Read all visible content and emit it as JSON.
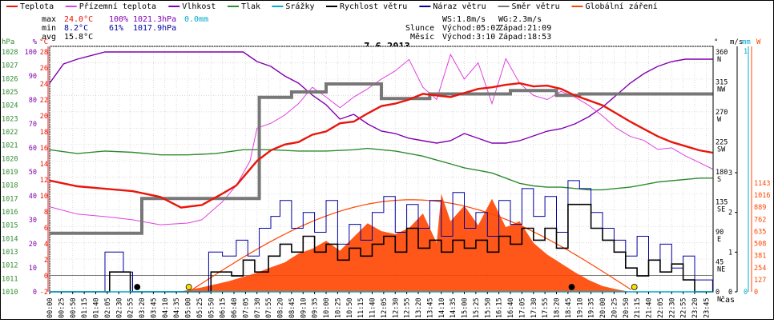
{
  "legend": [
    {
      "label": "Teplota",
      "color": "#e8160c"
    },
    {
      "label": "Přízemní teplota",
      "color": "#e040e0"
    },
    {
      "label": "Vlhkost",
      "color": "#8000b0"
    },
    {
      "label": "Tlak",
      "color": "#2e8b2e"
    },
    {
      "label": "Srážky",
      "color": "#00aacc"
    },
    {
      "label": "Rychlost větru",
      "color": "#000000"
    },
    {
      "label": "Náraz větru",
      "color": "#0000a0"
    },
    {
      "label": "Směr větru",
      "color": "#777777"
    },
    {
      "label": "Globální záření",
      "color": "#ff4500"
    }
  ],
  "stats": {
    "max_label": "max",
    "max_temp": "24.0°C",
    "max_hum": "100%",
    "max_press": "1021.3hPa",
    "max_rain": "0.0mm",
    "min_label": "min",
    "min_temp": "8.2°C",
    "min_hum": "61%",
    "min_press": "1017.9hPa",
    "avg_label": "avg",
    "avg_temp": "15.8°C"
  },
  "wind": {
    "ws": "WS:1.8m/s",
    "wg": "WG:2.3m/s"
  },
  "sun": {
    "label": "Slunce",
    "rise": "Východ:05:02",
    "set": "Západ:21:09"
  },
  "moon": {
    "label": "Měsíc",
    "rise": "Východ:3:10",
    "set": "Západ:18:53"
  },
  "colors": {
    "temp": "#e8160c",
    "humidity": "#8000b0",
    "pressure": "#2e8b2e",
    "rain": "#00aacc",
    "radiation": "#ff4500",
    "gust": "#0000a0",
    "speed": "#000000",
    "dir": "#777777",
    "ground": "#e040e0"
  },
  "chart_data": {
    "type": "line",
    "title": "7.6.2013",
    "xlabel": "čas",
    "x_ticks": [
      "00:00",
      "00:25",
      "00:50",
      "01:15",
      "01:40",
      "02:05",
      "02:30",
      "02:55",
      "03:20",
      "03:45",
      "04:10",
      "04:35",
      "05:00",
      "05:25",
      "05:50",
      "06:15",
      "06:40",
      "07:05",
      "07:30",
      "07:55",
      "08:20",
      "08:45",
      "09:10",
      "09:35",
      "10:00",
      "10:25",
      "10:50",
      "11:15",
      "11:40",
      "12:05",
      "12:30",
      "12:55",
      "13:20",
      "13:45",
      "14:10",
      "14:35",
      "15:00",
      "15:25",
      "15:50",
      "16:15",
      "16:40",
      "17:05",
      "17:30",
      "17:55",
      "18:20",
      "18:45",
      "19:10",
      "19:35",
      "20:00",
      "20:25",
      "20:50",
      "21:15",
      "21:40",
      "22:05",
      "22:30",
      "22:55",
      "23:20",
      "23:45"
    ],
    "axes": {
      "pressure": {
        "label": "hPa",
        "range": [
          1010,
          1029
        ],
        "ticks": [
          "1028",
          "1027",
          "1026",
          "1025",
          "1024",
          "1023",
          "1022",
          "1021",
          "1020",
          "1019",
          "1018",
          "1017",
          "1016",
          "1015",
          "1014",
          "1013",
          "1012",
          "1011",
          "1010"
        ]
      },
      "humidity": {
        "label": "%",
        "range": [
          0,
          100
        ],
        "ticks": [
          "100",
          "90",
          "80",
          "70",
          "60",
          "50",
          "40",
          "30",
          "20",
          "10",
          "0"
        ]
      },
      "temperature": {
        "label": "°C",
        "range": [
          -2,
          28
        ],
        "ticks": [
          "28",
          "26",
          "24",
          "22",
          "20",
          "18",
          "16",
          "14",
          "12",
          "10",
          "8",
          "6",
          "4",
          "2",
          "0",
          "-2"
        ]
      },
      "direction": {
        "label": "°",
        "ticks": [
          "360 N",
          "315 NW",
          "270 W",
          "225 SW",
          "180 S",
          "135 SE",
          "90 E",
          "45 NE",
          "0 N"
        ]
      },
      "wind": {
        "label": "m/s",
        "ticks": [
          "3",
          "2",
          "1",
          "0"
        ]
      },
      "rain": {
        "label": "mm",
        "ticks": [
          "1",
          "0"
        ]
      },
      "radiation": {
        "label": "W",
        "ticks": [
          "1143",
          "1016",
          "889",
          "762",
          "635",
          "508",
          "381",
          "254",
          "127",
          "0"
        ]
      }
    },
    "series": [
      {
        "name": "Teplota",
        "unit": "°C",
        "x": [
          "00:00",
          "01:00",
          "02:00",
          "03:00",
          "04:00",
          "04:45",
          "05:30",
          "06:15",
          "06:45",
          "07:00",
          "07:30",
          "08:00",
          "08:30",
          "09:00",
          "09:30",
          "10:00",
          "10:30",
          "11:00",
          "11:30",
          "12:00",
          "12:30",
          "13:00",
          "13:30",
          "14:00",
          "14:30",
          "15:00",
          "15:30",
          "16:00",
          "16:30",
          "17:00",
          "17:30",
          "18:00",
          "18:30",
          "19:00",
          "19:30",
          "20:00",
          "20:30",
          "21:00",
          "21:30",
          "22:00",
          "22:30",
          "23:00",
          "23:30",
          "23:59"
        ],
        "values": [
          11.6,
          10.9,
          10.6,
          10.3,
          9.6,
          8.3,
          8.6,
          10.0,
          11.0,
          12.0,
          14.0,
          15.3,
          16.0,
          16.3,
          17.2,
          17.6,
          18.6,
          18.8,
          19.8,
          20.7,
          21.0,
          21.5,
          22.2,
          22.0,
          21.8,
          22.3,
          22.8,
          23.0,
          23.3,
          23.5,
          23.1,
          23.2,
          22.8,
          22.0,
          21.4,
          20.8,
          19.8,
          18.8,
          17.9,
          17.0,
          16.3,
          15.8,
          15.3,
          15.0
        ]
      },
      {
        "name": "Přízemní teplota",
        "unit": "°C",
        "x": [
          "00:00",
          "01:00",
          "02:00",
          "03:00",
          "04:00",
          "05:00",
          "05:30",
          "06:15",
          "06:45",
          "07:15",
          "07:30",
          "08:00",
          "08:30",
          "09:00",
          "09:30",
          "10:00",
          "10:30",
          "11:00",
          "11:30",
          "12:00",
          "12:30",
          "13:00",
          "13:30",
          "14:00",
          "14:30",
          "15:00",
          "15:30",
          "16:00",
          "16:30",
          "17:00",
          "17:30",
          "18:00",
          "18:30",
          "19:00",
          "19:30",
          "20:00",
          "20:30",
          "21:00",
          "21:30",
          "22:00",
          "22:30",
          "23:00",
          "23:30",
          "23:59"
        ],
        "values": [
          8.4,
          7.5,
          7.2,
          6.8,
          6.2,
          6.4,
          6.8,
          9.0,
          11.0,
          14.0,
          18.0,
          18.6,
          19.6,
          21.0,
          23.0,
          21.8,
          20.5,
          21.8,
          22.8,
          24.0,
          25.0,
          26.4,
          23.0,
          21.5,
          27.0,
          24.0,
          26.0,
          21.0,
          26.5,
          23.5,
          22.0,
          21.5,
          22.5,
          21.8,
          20.8,
          19.5,
          18.0,
          17.0,
          16.5,
          15.4,
          15.6,
          14.6,
          13.8,
          13.0
        ]
      },
      {
        "name": "Vlhkost",
        "unit": "%",
        "x": [
          "00:00",
          "00:30",
          "01:00",
          "02:00",
          "03:00",
          "04:00",
          "05:00",
          "06:00",
          "07:00",
          "07:30",
          "08:00",
          "08:30",
          "09:00",
          "09:30",
          "10:00",
          "10:30",
          "11:00",
          "11:30",
          "12:00",
          "12:30",
          "13:00",
          "13:30",
          "14:00",
          "14:30",
          "15:00",
          "15:30",
          "16:00",
          "16:30",
          "17:00",
          "17:30",
          "18:00",
          "18:30",
          "19:00",
          "19:30",
          "20:00",
          "20:30",
          "21:00",
          "21:30",
          "22:00",
          "22:30",
          "23:00",
          "23:59"
        ],
        "values": [
          87,
          95,
          97,
          100,
          100,
          100,
          100,
          100,
          100,
          96,
          94,
          90,
          87,
          82,
          78,
          72,
          74,
          70,
          67,
          66,
          64,
          63,
          62,
          63,
          66,
          64,
          62,
          62,
          63,
          65,
          67,
          68,
          70,
          73,
          77,
          82,
          87,
          91,
          94,
          96,
          97,
          97
        ]
      },
      {
        "name": "Tlak",
        "unit": "hPa",
        "x": [
          "00:00",
          "01:00",
          "02:00",
          "03:00",
          "04:00",
          "05:00",
          "06:00",
          "07:00",
          "08:00",
          "09:00",
          "10:00",
          "11:00",
          "11:30",
          "12:00",
          "12:30",
          "13:00",
          "13:30",
          "14:00",
          "14:30",
          "15:00",
          "15:30",
          "16:00",
          "16:30",
          "17:00",
          "17:30",
          "18:00",
          "18:30",
          "19:00",
          "19:30",
          "20:00",
          "20:30",
          "21:00",
          "21:30",
          "22:00",
          "22:30",
          "23:00",
          "23:30",
          "23:59"
        ],
        "values": [
          1021.0,
          1020.7,
          1020.9,
          1020.8,
          1020.6,
          1020.6,
          1020.7,
          1021.0,
          1021.0,
          1020.9,
          1020.9,
          1021.0,
          1021.1,
          1021.0,
          1020.9,
          1020.7,
          1020.5,
          1020.2,
          1019.9,
          1019.6,
          1019.4,
          1019.2,
          1018.8,
          1018.4,
          1018.2,
          1018.1,
          1018.1,
          1018.0,
          1017.9,
          1017.9,
          1018.0,
          1018.1,
          1018.3,
          1018.5,
          1018.6,
          1018.7,
          1018.8,
          1018.8
        ]
      },
      {
        "name": "Srážky",
        "unit": "mm",
        "x": [
          "00:00",
          "23:59"
        ],
        "values": [
          0.0,
          0.0
        ]
      },
      {
        "name": "Směr větru",
        "unit": "°",
        "x": [
          "00:00",
          "02:55",
          "03:20",
          "07:05",
          "07:35",
          "08:20",
          "08:45",
          "09:35",
          "10:00",
          "11:30",
          "12:00",
          "12:30",
          "13:45",
          "14:10",
          "16:40",
          "18:20",
          "19:10",
          "23:59"
        ],
        "values": [
          88,
          88,
          140,
          140,
          292,
          292,
          300,
          300,
          312,
          312,
          290,
          290,
          297,
          297,
          302,
          295,
          297,
          297
        ]
      },
      {
        "name": "Rychlost větru",
        "unit": "m/s",
        "x": [
          "00:00",
          "01:50",
          "02:10",
          "02:55",
          "03:10",
          "05:25",
          "05:50",
          "06:35",
          "07:00",
          "07:25",
          "07:55",
          "08:20",
          "08:45",
          "09:10",
          "09:35",
          "10:00",
          "10:25",
          "10:50",
          "11:15",
          "11:40",
          "12:05",
          "12:30",
          "12:55",
          "13:20",
          "13:45",
          "14:10",
          "14:35",
          "15:00",
          "15:25",
          "15:50",
          "16:15",
          "16:40",
          "17:05",
          "17:30",
          "17:55",
          "18:20",
          "18:45",
          "19:10",
          "19:35",
          "20:00",
          "20:25",
          "20:50",
          "21:15",
          "21:40",
          "22:05",
          "22:30",
          "22:55",
          "23:20",
          "23:59"
        ],
        "values": [
          0.0,
          0.0,
          0.5,
          0.0,
          0.0,
          0.0,
          0.5,
          0.4,
          0.8,
          0.5,
          0.9,
          1.2,
          1.0,
          1.4,
          1.0,
          1.2,
          0.8,
          1.1,
          0.9,
          1.2,
          1.4,
          1.0,
          1.6,
          1.1,
          1.3,
          1.0,
          1.3,
          1.1,
          1.3,
          1.0,
          1.4,
          1.2,
          1.6,
          1.3,
          1.6,
          1.1,
          2.2,
          2.2,
          1.6,
          1.3,
          1.0,
          0.6,
          0.4,
          0.8,
          0.5,
          0.7,
          0.3,
          0.0,
          0.0
        ]
      },
      {
        "name": "Náraz větru",
        "unit": "m/s",
        "x": [
          "00:00",
          "01:30",
          "02:00",
          "02:40",
          "03:00",
          "05:15",
          "05:45",
          "06:15",
          "06:45",
          "07:10",
          "07:35",
          "08:00",
          "08:20",
          "08:45",
          "09:10",
          "09:35",
          "10:00",
          "10:25",
          "10:50",
          "11:15",
          "11:40",
          "12:05",
          "12:30",
          "12:55",
          "13:20",
          "13:45",
          "14:10",
          "14:35",
          "15:00",
          "15:25",
          "15:50",
          "16:15",
          "16:40",
          "17:05",
          "17:30",
          "17:55",
          "18:20",
          "18:45",
          "19:10",
          "19:35",
          "20:00",
          "20:25",
          "20:50",
          "21:15",
          "21:40",
          "22:05",
          "22:30",
          "22:55",
          "23:20",
          "23:59"
        ],
        "values": [
          0.0,
          0.0,
          1.0,
          0.5,
          0.0,
          0.0,
          1.0,
          0.9,
          1.3,
          0.9,
          1.6,
          1.9,
          2.3,
          1.6,
          2.0,
          1.5,
          2.3,
          1.2,
          1.7,
          1.3,
          2.0,
          2.4,
          1.5,
          2.2,
          1.6,
          2.3,
          1.4,
          2.5,
          1.6,
          2.0,
          1.4,
          2.3,
          1.7,
          2.6,
          1.9,
          2.4,
          1.5,
          2.8,
          2.6,
          2.0,
          1.6,
          1.3,
          0.9,
          1.4,
          0.8,
          1.2,
          0.6,
          0.9,
          0.3,
          0.0
        ]
      },
      {
        "name": "Globální záření",
        "unit": "W",
        "x": [
          "00:00",
          "04:40",
          "05:30",
          "06:30",
          "07:30",
          "08:00",
          "08:30",
          "09:00",
          "09:30",
          "10:00",
          "10:30",
          "11:00",
          "11:30",
          "12:00",
          "12:30",
          "13:00",
          "13:30",
          "14:00",
          "14:10",
          "14:30",
          "15:00",
          "15:30",
          "16:00",
          "16:30",
          "17:00",
          "17:30",
          "18:00",
          "18:30",
          "19:00",
          "19:30",
          "20:00",
          "20:30",
          "21:00",
          "23:59"
        ],
        "values": [
          0,
          0,
          45,
          110,
          195,
          250,
          300,
          390,
          440,
          520,
          420,
          560,
          700,
          620,
          590,
          650,
          800,
          500,
          1000,
          720,
          880,
          680,
          950,
          660,
          720,
          500,
          380,
          290,
          200,
          120,
          60,
          25,
          0,
          0
        ]
      }
    ]
  }
}
